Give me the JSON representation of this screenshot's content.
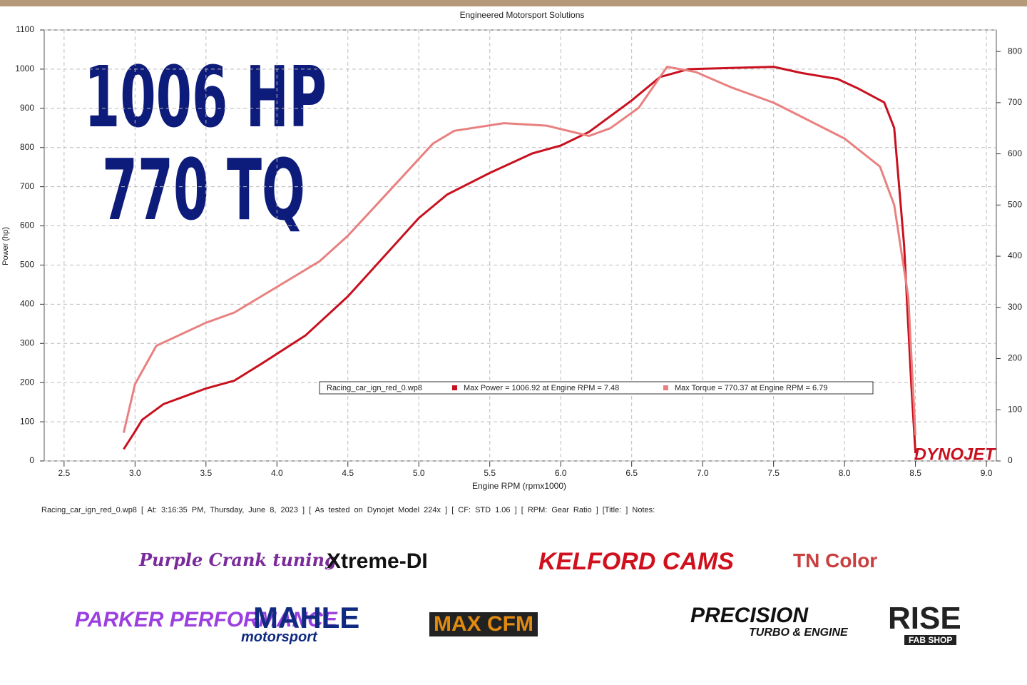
{
  "chart_data": {
    "type": "line",
    "title": "Engineered Motorsport Solutions",
    "xlabel": "Engine RPM (rpmx1000)",
    "ylabel": "Power (hp)",
    "headline": [
      "1006 HP",
      "770 TQ"
    ],
    "legend_file": "Racing_car_ign_red_0.wp8",
    "watermark": "DYNOJET",
    "footer": "Racing_car_ign_red_0.wp8 [ At: 3:16:35 PM, Thursday, June 8, 2023 ] [ As tested on Dynojet Model 224x ] [ CF: STD 1.06 ] [ RPM: Gear Ratio ] [Title: ] Notes:",
    "grid": true,
    "xlim": [
      2.36,
      9.07
    ],
    "ylim": [
      0,
      1100
    ],
    "y2lim": [
      0,
      842
    ],
    "xticks": [
      2.5,
      {
        "value": 3,
        "label": "3.0"
      },
      3.5,
      {
        "value": 4,
        "label": "4.0"
      },
      4.5,
      {
        "value": 5,
        "label": "5.0"
      },
      5.5,
      {
        "value": 6,
        "label": "6.0"
      },
      6.5,
      {
        "value": 7,
        "label": "7.0"
      },
      7.5,
      {
        "value": 8,
        "label": "8.0"
      },
      8.5,
      {
        "value": 9,
        "label": "9.0"
      }
    ],
    "yticks": [
      0,
      100,
      200,
      300,
      400,
      500,
      600,
      700,
      800,
      900,
      1000,
      1100
    ],
    "y2ticks": [
      0,
      100,
      200,
      300,
      400,
      500,
      600,
      700,
      800
    ],
    "series": [
      {
        "name": "Max Power = 1006.92 at Engine RPM = 7.48",
        "color": "#c8101e",
        "x": [
          2.92,
          3.0,
          3.05,
          3.2,
          3.5,
          3.7,
          3.9,
          4.2,
          4.5,
          4.8,
          5.0,
          5.2,
          5.5,
          5.8,
          6.0,
          6.2,
          6.5,
          6.7,
          6.9,
          7.2,
          7.5,
          7.7,
          7.95,
          8.1,
          8.28,
          8.35,
          8.42,
          8.47,
          8.5
        ],
        "values": [
          30,
          75,
          105,
          145,
          185,
          205,
          250,
          320,
          420,
          540,
          620,
          680,
          735,
          785,
          805,
          840,
          920,
          980,
          1000,
          1003,
          1006,
          990,
          975,
          950,
          915,
          850,
          550,
          200,
          20
        ]
      },
      {
        "name": "Max Torque = 770.37 at Engine RPM = 6.79",
        "color": "#e98080",
        "axis": "y2",
        "x": [
          2.92,
          3.0,
          3.15,
          3.5,
          3.7,
          4.0,
          4.3,
          4.5,
          4.8,
          5.1,
          5.25,
          5.6,
          5.9,
          6.2,
          6.35,
          6.55,
          6.75,
          6.95,
          7.2,
          7.5,
          7.7,
          8.0,
          8.25,
          8.35,
          8.45,
          8.5
        ],
        "values": [
          55,
          150,
          225,
          270,
          290,
          340,
          390,
          440,
          530,
          620,
          645,
          660,
          655,
          635,
          650,
          690,
          770,
          760,
          730,
          700,
          672,
          630,
          575,
          500,
          320,
          50
        ]
      }
    ]
  },
  "logos": [
    "Purple Crank tuning",
    "Xtreme-DI",
    "KELFORD CAMS",
    "TN Color",
    "PARKER PERFORMANCE",
    "MAHLE",
    "motorsport",
    "MAX CFM",
    "PRECISION",
    "TURBO & ENGINE",
    "RISE",
    "FAB SHOP"
  ]
}
